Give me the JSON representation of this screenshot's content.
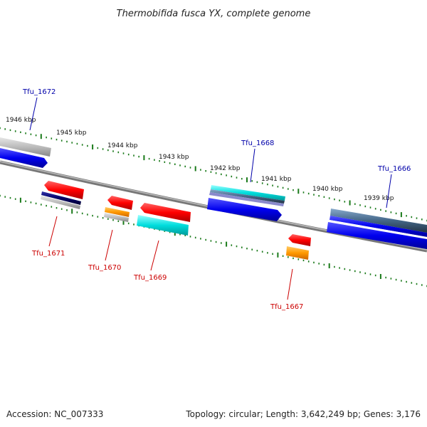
{
  "title": "Thermobifida fusca YX, complete genome",
  "footer": {
    "accession": "Accession: NC_007333",
    "summary": "Topology: circular; Length: 3,642,249 bp; Genes: 3,176"
  },
  "scale_labels": [
    "1946 kbp",
    "1945 kbp",
    "1944 kbp",
    "1943 kbp",
    "1942 kbp",
    "1941 kbp",
    "1940 kbp",
    "1939 kbp"
  ],
  "genes": [
    {
      "name": "Tfu_1672",
      "strand": "forward",
      "color": "#0000aa"
    },
    {
      "name": "Tfu_1668",
      "strand": "forward",
      "color": "#0000aa"
    },
    {
      "name": "Tfu_1666",
      "strand": "forward",
      "color": "#0000aa"
    },
    {
      "name": "Tfu_1671",
      "strand": "reverse",
      "color": "#cc0000"
    },
    {
      "name": "Tfu_1670",
      "strand": "reverse",
      "color": "#cc0000"
    },
    {
      "name": "Tfu_1669",
      "strand": "reverse",
      "color": "#cc0000"
    },
    {
      "name": "Tfu_1667",
      "strand": "reverse",
      "color": "#cc0000"
    }
  ],
  "colors": {
    "backbone": "#777777",
    "scale_ticks": "#1a7a1a",
    "forward_cds": "#0000ee",
    "reverse_cds": "#ff1111",
    "feature_cyan": "#00dddd",
    "feature_orange": "#ff9900",
    "feature_navy": "#000066",
    "feature_grey": "#aaaaaa"
  }
}
